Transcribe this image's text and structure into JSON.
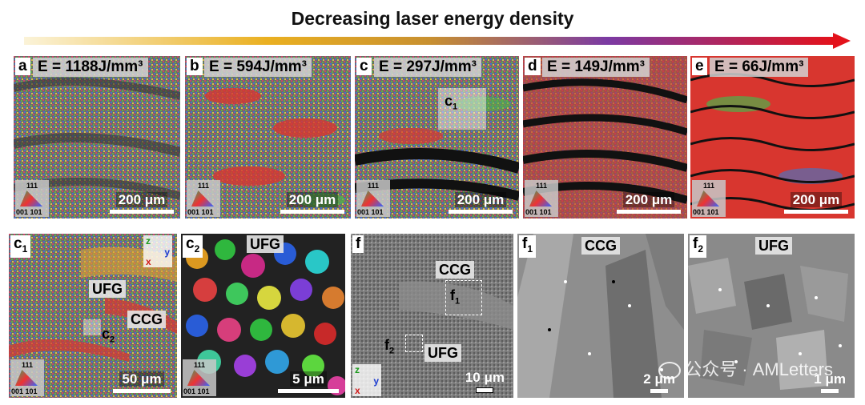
{
  "header": {
    "title": "Decreasing laser energy density"
  },
  "colors": {
    "arrow_start": "#f7e9b8",
    "arrow_mid": "#e9a517",
    "arrow_purple": "#7a3aa0",
    "arrow_end": "#e3121b"
  },
  "top_panels": [
    {
      "letter": "a",
      "energy": "E = 1188J/mm³",
      "scale": "200 μm"
    },
    {
      "letter": "b",
      "energy": "E = 594J/mm³",
      "scale": "200 μm"
    },
    {
      "letter": "c",
      "energy": "E = 297J/mm³",
      "scale": "200 μm",
      "inset": "c",
      "inset_sub": "1"
    },
    {
      "letter": "d",
      "energy": "E = 149J/mm³",
      "scale": "200 μm"
    },
    {
      "letter": "e",
      "energy": "E = 66J/mm³",
      "scale": "200 μm"
    }
  ],
  "ipf": {
    "top": "111",
    "bottom": "001 101"
  },
  "panel_c1": {
    "letter": "c",
    "sub": "1",
    "ufg": "UFG",
    "ccg": "CCG",
    "inset": "c",
    "inset_sub": "2",
    "scale": "50 μm",
    "axes": {
      "z": "z",
      "y": "y",
      "x": "x"
    }
  },
  "panel_c2": {
    "letter": "c",
    "sub": "2",
    "ufg": "UFG",
    "scale": "5 μm"
  },
  "panel_f": {
    "letter": "f",
    "ccg": "CCG",
    "ufg": "UFG",
    "f1": "f",
    "f1_sub": "1",
    "f2": "f",
    "f2_sub": "2",
    "scale": "10 μm",
    "axes": {
      "z": "z",
      "y": "y",
      "x": "x"
    }
  },
  "panel_f1": {
    "letter": "f",
    "sub": "1",
    "label": "CCG",
    "scale": "2 μm"
  },
  "panel_f2": {
    "letter": "f",
    "sub": "2",
    "label": "UFG",
    "scale": "1 μm"
  },
  "watermark": {
    "text": "公众号 · AMLetters"
  }
}
